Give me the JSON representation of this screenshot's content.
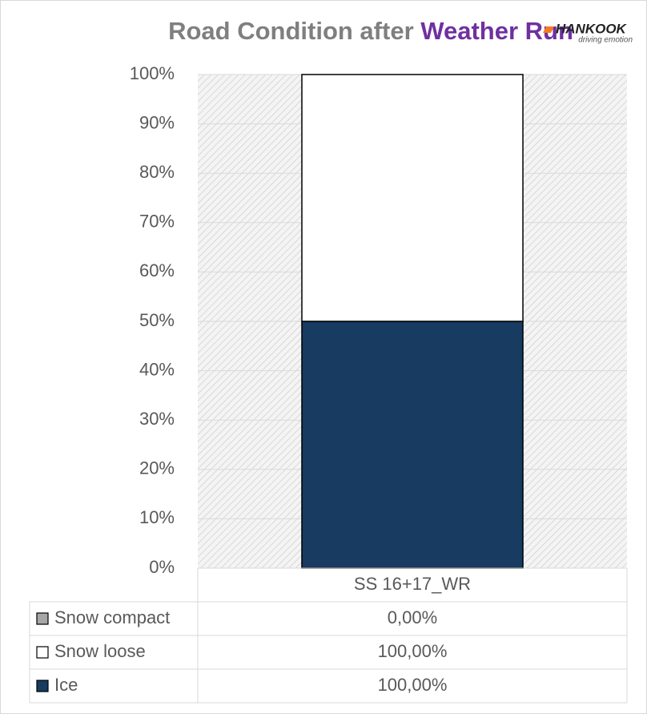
{
  "chart_data": {
    "type": "bar",
    "stacking": "percent",
    "title": "Road Condition after",
    "title_highlight": "Weather Run",
    "logo": {
      "name": "HANKOOK",
      "tagline": "driving emotion"
    },
    "categories": [
      "SS 16+17_WR"
    ],
    "series": [
      {
        "name": "Snow compact",
        "color": "#a6a6a6",
        "values": [
          0
        ],
        "value_labels": [
          "0,00%"
        ]
      },
      {
        "name": "Snow loose",
        "color": "#ffffff",
        "values": [
          100
        ],
        "value_labels": [
          "100,00%"
        ]
      },
      {
        "name": "Ice",
        "color": "#173b61",
        "values": [
          100
        ],
        "value_labels": [
          "100,00%"
        ]
      }
    ],
    "ylim": [
      0,
      100
    ],
    "yticks": [
      {
        "value": 0,
        "label": "0%"
      },
      {
        "value": 10,
        "label": "10%"
      },
      {
        "value": 20,
        "label": "20%"
      },
      {
        "value": 30,
        "label": "30%"
      },
      {
        "value": 40,
        "label": "40%"
      },
      {
        "value": 50,
        "label": "50%"
      },
      {
        "value": 60,
        "label": "60%"
      },
      {
        "value": 70,
        "label": "70%"
      },
      {
        "value": 80,
        "label": "80%"
      },
      {
        "value": 90,
        "label": "90%"
      },
      {
        "value": 100,
        "label": "100%"
      }
    ],
    "grid": true
  }
}
